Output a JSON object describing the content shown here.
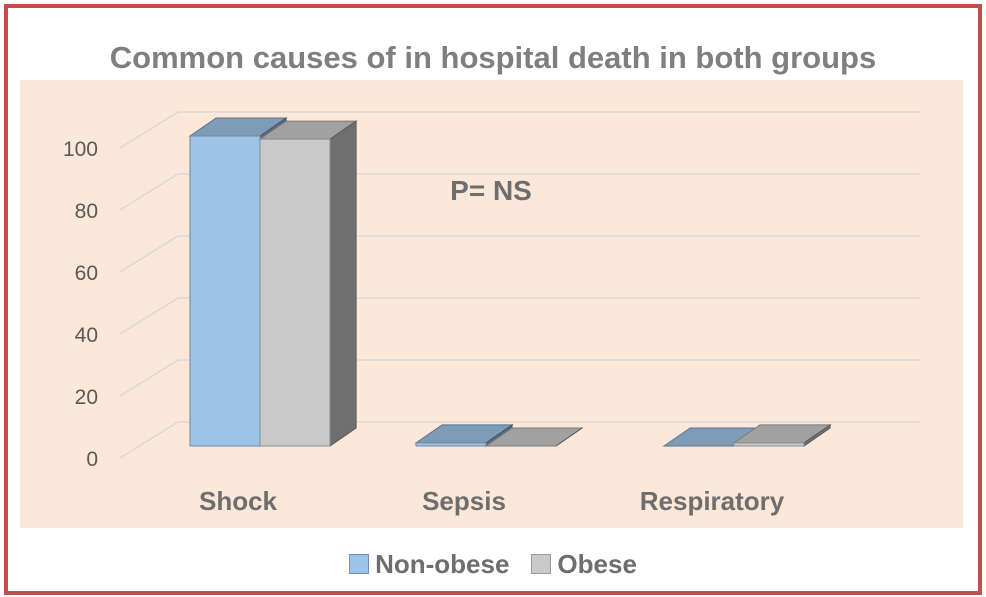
{
  "chart_data": {
    "type": "bar",
    "title": "Common causes of in hospital death in both groups",
    "annotation": "P= NS",
    "categories": [
      "Shock",
      "Sepsis",
      "Respiratory"
    ],
    "series": [
      {
        "name": "Non-obese",
        "values": [
          100,
          1,
          0
        ],
        "color": "#9dc3e6"
      },
      {
        "name": "Obese",
        "values": [
          99,
          0,
          1
        ],
        "color": "#c9c9c9"
      }
    ],
    "ylim": [
      0,
      100
    ],
    "yticks": [
      "0",
      "20",
      "40",
      "60",
      "80",
      "100"
    ],
    "grid": true,
    "legend": "bottom",
    "style": "3d-column"
  },
  "colors": {
    "border": "#c0504d",
    "plot_background": "#fce8d9",
    "text": "#7f7f7f"
  }
}
